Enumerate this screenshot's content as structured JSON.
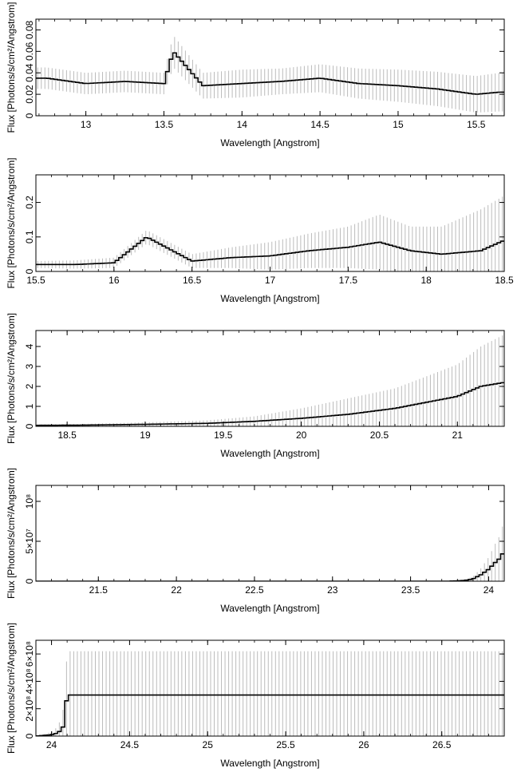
{
  "chart_data": [
    {
      "type": "line",
      "xlabel": "Wavelength [Angstrom]",
      "ylabel": "Flux [Photons/s/cm²/Angstrom]",
      "xlim": [
        12.68,
        15.68
      ],
      "ylim": [
        0,
        0.09
      ],
      "xticks": [
        13,
        13.5,
        14,
        14.5,
        15,
        15.5
      ],
      "xtick_labels": [
        "13",
        "13.5",
        "14",
        "14.5",
        "15",
        "15.5"
      ],
      "yticks": [
        0,
        0.02,
        0.04,
        0.06,
        0.08
      ],
      "ytick_labels": [
        "0",
        "0.02",
        "0.04",
        "0.06",
        "0.08"
      ],
      "series": [
        {
          "x": [
            12.75,
            13.0,
            13.25,
            13.5,
            13.56,
            13.75,
            14.0,
            14.25,
            14.5,
            14.75,
            15.0,
            15.25,
            15.5,
            15.65
          ],
          "y": [
            0.035,
            0.03,
            0.032,
            0.03,
            0.06,
            0.028,
            0.03,
            0.032,
            0.035,
            0.03,
            0.028,
            0.025,
            0.02,
            0.022
          ],
          "yerr": [
            0.01,
            0.01,
            0.01,
            0.01,
            0.015,
            0.012,
            0.013,
            0.012,
            0.013,
            0.014,
            0.015,
            0.016,
            0.017,
            0.018
          ]
        }
      ]
    },
    {
      "type": "line",
      "xlabel": "Wavelength [Angstrom]",
      "ylabel": "Flux [Photons/s/cm²/Angstrom]",
      "xlim": [
        15.5,
        18.5
      ],
      "ylim": [
        0,
        0.28
      ],
      "xticks": [
        15.5,
        16,
        16.5,
        17,
        17.5,
        18,
        18.5
      ],
      "xtick_labels": [
        "15.5",
        "16",
        "16.5",
        "17",
        "17.5",
        "18",
        "18.5"
      ],
      "yticks": [
        0,
        0.1,
        0.2
      ],
      "ytick_labels": [
        "0",
        "0.1",
        "0.2"
      ],
      "series": [
        {
          "x": [
            15.5,
            15.75,
            16.0,
            16.21,
            16.5,
            16.75,
            17.0,
            17.25,
            17.5,
            17.7,
            17.9,
            18.1,
            18.35,
            18.5
          ],
          "y": [
            0.02,
            0.02,
            0.025,
            0.1,
            0.03,
            0.04,
            0.045,
            0.06,
            0.07,
            0.085,
            0.06,
            0.05,
            0.06,
            0.09
          ],
          "yerr": [
            0.01,
            0.012,
            0.015,
            0.02,
            0.02,
            0.03,
            0.04,
            0.05,
            0.06,
            0.08,
            0.07,
            0.08,
            0.12,
            0.13
          ]
        }
      ]
    },
    {
      "type": "line",
      "xlabel": "Wavelength [Angstrom]",
      "ylabel": "Flux [Photons/s/cm²/Angstrom]",
      "xlim": [
        18.3,
        21.3
      ],
      "ylim": [
        0,
        4.8
      ],
      "xticks": [
        18.5,
        19,
        19.5,
        20,
        20.5,
        21
      ],
      "xtick_labels": [
        "18.5",
        "19",
        "19.5",
        "20",
        "20.5",
        "21"
      ],
      "yticks": [
        0,
        1,
        2,
        3,
        4
      ],
      "ytick_labels": [
        "0",
        "1",
        "2",
        "3",
        "4"
      ],
      "series": [
        {
          "x": [
            18.3,
            18.6,
            19.0,
            19.4,
            19.7,
            20.0,
            20.3,
            20.6,
            20.8,
            21.0,
            21.15,
            21.3
          ],
          "y": [
            0.05,
            0.06,
            0.1,
            0.15,
            0.25,
            0.4,
            0.6,
            0.9,
            1.2,
            1.5,
            2.0,
            2.2
          ],
          "yerr": [
            0.05,
            0.06,
            0.1,
            0.15,
            0.25,
            0.5,
            0.8,
            1.0,
            1.3,
            1.6,
            2.0,
            2.4
          ]
        }
      ]
    },
    {
      "type": "line",
      "xlabel": "Wavelength [Angstrom]",
      "ylabel": "Flux [Photons/s/cm²/Angstrom]",
      "xlim": [
        21.1,
        24.1
      ],
      "ylim": [
        0,
        120000000
      ],
      "xticks": [
        21.5,
        22,
        22.5,
        23,
        23.5,
        24
      ],
      "xtick_labels": [
        "21.5",
        "22",
        "22.5",
        "23",
        "23.5",
        "24"
      ],
      "yticks": [
        0,
        50000000,
        100000000
      ],
      "ytick_labels": [
        "0",
        "5×10⁷",
        "10⁸"
      ],
      "series": [
        {
          "x": [
            23.75,
            23.85,
            23.9,
            23.95,
            24.0,
            24.05,
            24.08,
            24.1
          ],
          "y": [
            0,
            1000000,
            3000000,
            8000000,
            15000000,
            25000000,
            30000000,
            40000000
          ],
          "yerr": [
            0,
            1000000,
            3000000,
            8000000,
            15000000,
            25000000,
            30000000,
            40000000
          ]
        }
      ]
    },
    {
      "type": "line",
      "xlabel": "Wavelength [Angstrom]",
      "ylabel": "Flux [Photons/s/cm²/Angstrom]",
      "xlim": [
        23.9,
        26.9
      ],
      "ylim": [
        0,
        700000000
      ],
      "xticks": [
        24,
        24.5,
        25,
        25.5,
        26,
        26.5
      ],
      "xtick_labels": [
        "24",
        "24.5",
        "25",
        "25.5",
        "26",
        "26.5"
      ],
      "yticks": [
        0,
        200000000,
        400000000,
        600000000
      ],
      "ytick_labels": [
        "0",
        "2×10⁸",
        "4×10⁸",
        "6×10⁸"
      ],
      "series": [
        {
          "x": [
            23.9,
            23.95,
            24.0,
            24.03,
            24.06,
            24.08,
            24.1
          ],
          "y": [
            0,
            5000000,
            10000000,
            20000000,
            40000000,
            80000000,
            300000000
          ],
          "yerr": [
            0,
            10000000,
            20000000,
            40000000,
            80000000,
            150000000,
            320000000
          ]
        }
      ]
    }
  ]
}
